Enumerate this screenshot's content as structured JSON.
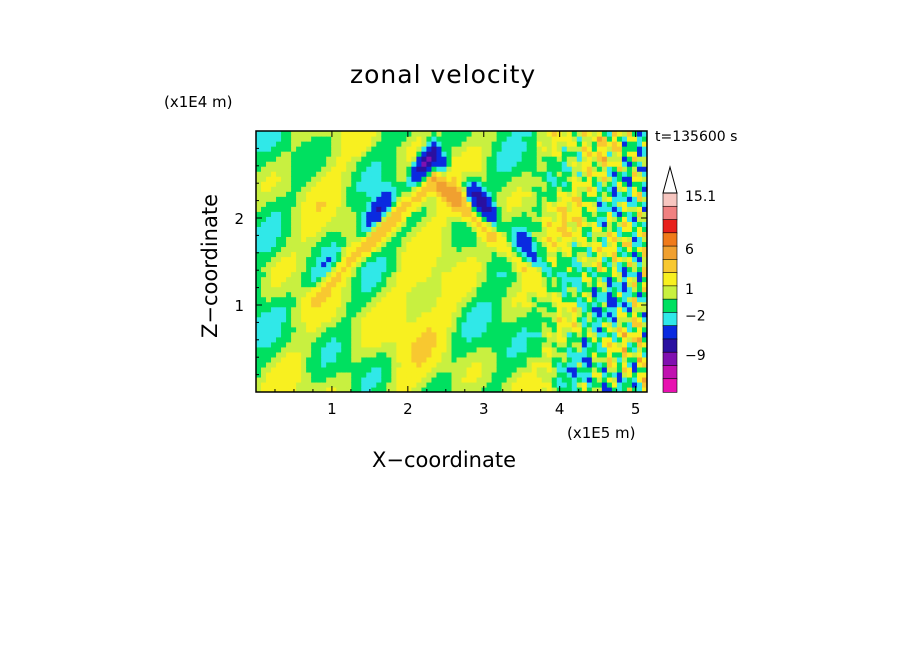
{
  "chart_data": {
    "type": "heatmap",
    "title": "zonal velocity",
    "xlabel": "X−coordinate",
    "ylabel": "Z−coordinate",
    "x_unit": "(x1E5 m)",
    "z_unit": "(x1E4 m)",
    "time_label": "t=135600 s",
    "xlim": [
      0,
      5.15
    ],
    "ylim": [
      0,
      3.0
    ],
    "xticks": [
      "1",
      "2",
      "3",
      "4",
      "5"
    ],
    "xtick_values": [
      1,
      2,
      3,
      4,
      5
    ],
    "yticks": [
      "1",
      "2"
    ],
    "ytick_values": [
      1,
      2
    ],
    "colorbar": {
      "labels": [
        "15.1",
        "6",
        "1",
        "−2",
        "−9"
      ],
      "bands_top_to_bottom": [
        "#f7c6c0",
        "#f08080",
        "#e8201c",
        "#f07a1a",
        "#f0a030",
        "#f8c830",
        "#f8f020",
        "#c8f040",
        "#00e060",
        "#30e8e8",
        "#0a2ae0",
        "#2a10a0",
        "#8010b0",
        "#c010b0",
        "#e810b0"
      ],
      "extend_max_arrow": true
    },
    "field_description": "contour fill of zonal velocity; yellow/green background with blue and orange wave structures, strongest blue near x≈2.0–2.6, z≈2.4–2.8; noisy alternating blobs for x>3.5"
  }
}
